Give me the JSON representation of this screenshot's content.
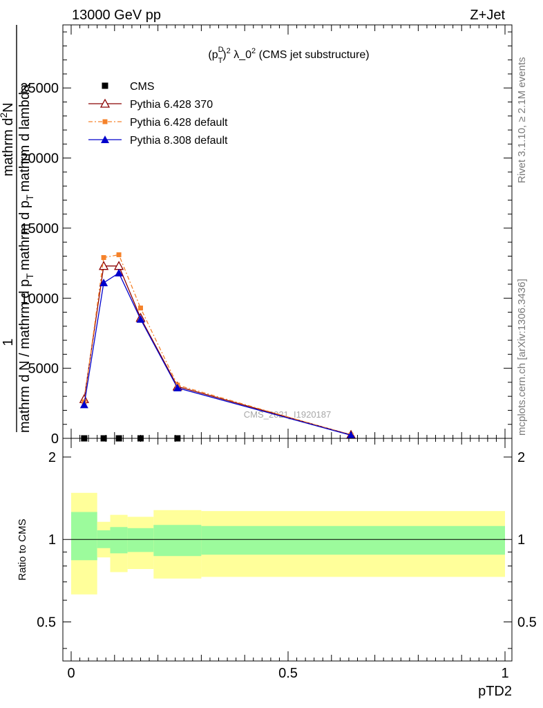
{
  "header": {
    "left": "13000 GeV pp",
    "right": "Z+Jet"
  },
  "side_labels": {
    "rivet": "Rivet 3.1.10, ≥ 2.1M events",
    "mcplots": "mcplots.cern.ch [arXiv:1306.3436]"
  },
  "watermark": "CMS_2021_I1920187",
  "chart_data": [
    {
      "type": "line",
      "title_prefix": "(p",
      "title_sup_sub": "D",
      "title_sub": "T",
      "title_mid": ")",
      "title_exp": "2",
      "title_lambda": " λ_0",
      "title_exp2": "2",
      "title_suffix": " (CMS jet substructure)",
      "ylabel": "1 / mathrm d N / mathrm d p_T mathrm d lambda  mathrm d^2N / mathrm d p_T mathrm d lambda",
      "ylabel_num": "1",
      "ylabel_den": "mathrm d N / mathrm d p",
      "ylabel_den_sub": "T",
      "ylabel_den2": "mathrm d p",
      "ylabel_den2_sub": "T",
      "ylabel_den3": "mathrm d lambda",
      "ylabel_top": "mathrm d",
      "ylabel_top_sup": "2",
      "ylabel_top2": "N",
      "xlim": [
        0,
        1
      ],
      "ylim": [
        0,
        29500
      ],
      "yticks": [
        0,
        5000,
        10000,
        15000,
        20000,
        25000
      ],
      "ytick_labels": [
        "0",
        "5000",
        "10000",
        "15000",
        "20000",
        "25000"
      ],
      "legend_position": "top-left",
      "series": [
        {
          "name": "CMS",
          "color": "#000000",
          "marker": "square",
          "x": [
            0.03,
            0.075,
            0.11,
            0.16,
            0.245
          ],
          "y": [
            0,
            0,
            0,
            0,
            0
          ]
        },
        {
          "name": "Pythia 6.428 370",
          "color": "#8b0000",
          "marker": "open-triangle",
          "x": [
            0.03,
            0.075,
            0.11,
            0.16,
            0.245,
            0.645
          ],
          "y": [
            2800,
            12300,
            12300,
            8600,
            3700,
            250
          ]
        },
        {
          "name": "Pythia 6.428 default",
          "color": "#f5822a",
          "marker": "small-square",
          "dashed": true,
          "x": [
            0.03,
            0.075,
            0.11,
            0.16,
            0.245,
            0.645
          ],
          "y": [
            2600,
            12900,
            13100,
            9300,
            3800,
            230
          ]
        },
        {
          "name": "Pythia 8.308 default",
          "color": "#0000cc",
          "marker": "filled-triangle",
          "x": [
            0.03,
            0.075,
            0.11,
            0.16,
            0.245,
            0.645
          ],
          "y": [
            2400,
            11100,
            11800,
            8500,
            3600,
            220
          ]
        }
      ]
    },
    {
      "type": "area",
      "ylabel": "Ratio to CMS",
      "xlabel": "pTD2",
      "xlim": [
        0,
        1
      ],
      "ylim": [
        0.36,
        2.34
      ],
      "yticks": [
        0.5,
        1,
        2
      ],
      "ytick_labels": [
        "0.5",
        "1",
        "2"
      ],
      "xticks": [
        0,
        0.5,
        1
      ],
      "xtick_labels": [
        "0",
        "0.5",
        "1"
      ],
      "colors": {
        "inner_band": "#9cfb9c",
        "outer_band": "#ffff9a"
      },
      "bins": [
        {
          "x0": 0.0,
          "x1": 0.06,
          "inner": [
            0.84,
            1.26
          ],
          "outer": [
            0.63,
            1.48
          ]
        },
        {
          "x0": 0.06,
          "x1": 0.09,
          "inner": [
            0.93,
            1.08
          ],
          "outer": [
            0.86,
            1.16
          ]
        },
        {
          "x0": 0.09,
          "x1": 0.13,
          "inner": [
            0.89,
            1.11
          ],
          "outer": [
            0.76,
            1.23
          ]
        },
        {
          "x0": 0.13,
          "x1": 0.19,
          "inner": [
            0.9,
            1.1
          ],
          "outer": [
            0.78,
            1.21
          ]
        },
        {
          "x0": 0.19,
          "x1": 0.3,
          "inner": [
            0.87,
            1.13
          ],
          "outer": [
            0.72,
            1.28
          ]
        },
        {
          "x0": 0.3,
          "x1": 1.0,
          "inner": [
            0.88,
            1.12
          ],
          "outer": [
            0.73,
            1.27
          ]
        }
      ]
    }
  ]
}
